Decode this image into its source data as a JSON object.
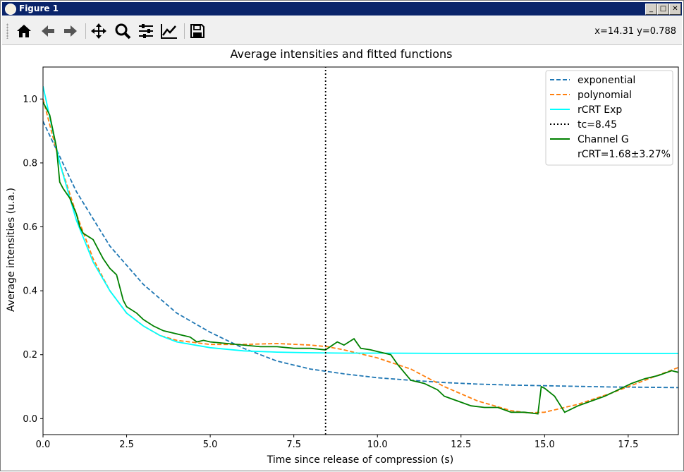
{
  "window": {
    "title": "Figure 1"
  },
  "toolbar": {
    "coords": "x=14.31 y=0.788",
    "buttons": [
      "home-icon",
      "back-icon",
      "forward-icon",
      "pan-icon",
      "zoom-icon",
      "configure-subplots-icon",
      "edit-axis-icon",
      "save-icon"
    ]
  },
  "chart_data": {
    "type": "line",
    "title": "Average intensities and fitted functions",
    "xlabel": "Time since release of compression (s)",
    "ylabel": "Average intensities (u.a.)",
    "xlim": [
      0.0,
      19.0
    ],
    "ylim": [
      -0.05,
      1.1
    ],
    "xticks": [
      "0.0",
      "2.5",
      "5.0",
      "7.5",
      "10.0",
      "12.5",
      "15.0",
      "17.5"
    ],
    "yticks": [
      "0.0",
      "0.2",
      "0.4",
      "0.6",
      "0.8",
      "1.0"
    ],
    "legend_position": "top-right",
    "legend": [
      "exponential",
      "polynomial",
      "rCRT Exp",
      "tc=8.45",
      "Channel G",
      "rCRT=1.68±3.27%"
    ],
    "series": [
      {
        "name": "exponential",
        "style": "dashed",
        "color": "#1f77b4",
        "x": [
          0,
          1,
          2,
          3,
          4,
          5,
          6,
          7,
          8,
          9,
          10,
          11,
          12,
          13,
          14,
          15,
          16,
          17,
          18,
          19
        ],
        "y": [
          0.93,
          0.71,
          0.54,
          0.42,
          0.33,
          0.27,
          0.22,
          0.18,
          0.155,
          0.14,
          0.128,
          0.12,
          0.113,
          0.108,
          0.105,
          0.103,
          0.101,
          0.099,
          0.098,
          0.097
        ]
      },
      {
        "name": "polynomial",
        "style": "dashed",
        "color": "#ff7f0e",
        "x": [
          0,
          0.5,
          1,
          1.5,
          2,
          2.5,
          3,
          3.5,
          4,
          5,
          6,
          7,
          8,
          8.5,
          9,
          10,
          11,
          12,
          13,
          14,
          14.5,
          15,
          16,
          17,
          18,
          19
        ],
        "y": [
          1.0,
          0.8,
          0.64,
          0.5,
          0.4,
          0.33,
          0.29,
          0.26,
          0.245,
          0.232,
          0.232,
          0.235,
          0.23,
          0.225,
          0.215,
          0.19,
          0.155,
          0.1,
          0.055,
          0.025,
          0.018,
          0.02,
          0.045,
          0.08,
          0.12,
          0.16
        ]
      },
      {
        "name": "rCRT Exp",
        "style": "solid",
        "color": "#00ffff",
        "x": [
          0,
          0.5,
          1,
          1.5,
          2,
          2.5,
          3,
          3.5,
          4,
          5,
          6,
          7,
          8,
          9,
          10,
          12,
          14,
          16,
          19
        ],
        "y": [
          1.04,
          0.8,
          0.62,
          0.49,
          0.4,
          0.33,
          0.29,
          0.26,
          0.24,
          0.222,
          0.212,
          0.208,
          0.206,
          0.205,
          0.205,
          0.204,
          0.204,
          0.204,
          0.204
        ]
      },
      {
        "name": "Channel G",
        "style": "solid",
        "color": "#008000",
        "x": [
          0,
          0.2,
          0.4,
          0.5,
          0.6,
          0.8,
          1.0,
          1.1,
          1.2,
          1.5,
          1.7,
          1.8,
          2.0,
          2.2,
          2.4,
          2.5,
          2.8,
          3.0,
          3.3,
          3.6,
          4.0,
          4.4,
          4.6,
          4.8,
          5.0,
          5.5,
          6.0,
          6.5,
          7.0,
          7.5,
          8.0,
          8.45,
          8.8,
          9.0,
          9.3,
          9.5,
          9.8,
          10.0,
          10.4,
          10.6,
          10.8,
          11.0,
          11.4,
          11.8,
          12.0,
          12.4,
          12.8,
          13.2,
          13.6,
          14.0,
          14.4,
          14.8,
          14.9,
          15.0,
          15.3,
          15.6,
          16.0,
          16.4,
          16.8,
          17.2,
          17.6,
          18.0,
          18.4,
          18.8,
          19.0
        ],
        "y": [
          0.99,
          0.95,
          0.85,
          0.74,
          0.72,
          0.69,
          0.64,
          0.6,
          0.58,
          0.56,
          0.52,
          0.5,
          0.47,
          0.45,
          0.37,
          0.35,
          0.33,
          0.31,
          0.29,
          0.275,
          0.265,
          0.255,
          0.24,
          0.245,
          0.24,
          0.235,
          0.23,
          0.225,
          0.225,
          0.22,
          0.22,
          0.215,
          0.24,
          0.23,
          0.25,
          0.22,
          0.215,
          0.21,
          0.2,
          0.17,
          0.145,
          0.12,
          0.11,
          0.09,
          0.07,
          0.055,
          0.04,
          0.035,
          0.035,
          0.02,
          0.02,
          0.015,
          0.1,
          0.095,
          0.07,
          0.02,
          0.04,
          0.055,
          0.07,
          0.09,
          0.11,
          0.125,
          0.135,
          0.15,
          0.145
        ]
      },
      {
        "name": "tc=8.45",
        "style": "dotted",
        "color": "#000000",
        "x": [
          8.45,
          8.45
        ],
        "y": [
          -0.05,
          1.1
        ]
      }
    ]
  }
}
